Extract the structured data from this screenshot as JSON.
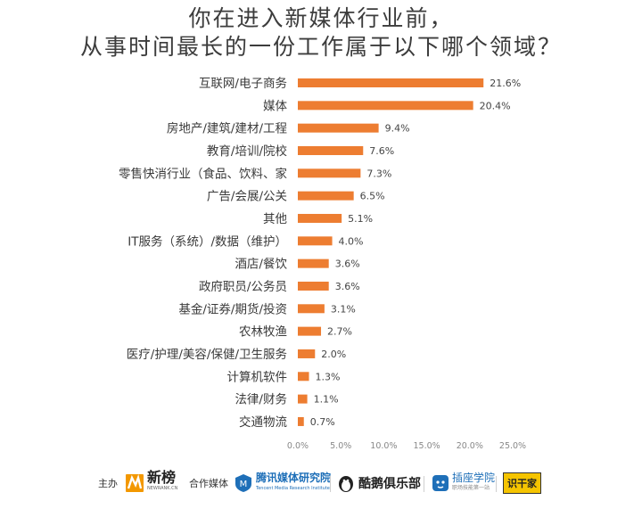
{
  "title_line1": "你在进入新媒体行业前，",
  "title_line2": "从事时间最长的一份工作属于以下哪个领域？",
  "chart_data": {
    "type": "bar",
    "orientation": "horizontal",
    "categories": [
      "互联网/电子商务",
      "媒体",
      "房地产/建筑/建材/工程",
      "教育/培训/院校",
      "零售快消行业（食品、饮料、家",
      "广告/会展/公关",
      "其他",
      "IT服务（系统）/数据（维护）",
      "酒店/餐饮",
      "政府职员/公务员",
      "基金/证券/期货/投资",
      "农林牧渔",
      "医疗/护理/美容/保健/卫生服务",
      "计算机软件",
      "法律/财务",
      "交通物流"
    ],
    "values": [
      21.6,
      20.4,
      9.4,
      7.6,
      7.3,
      6.5,
      5.1,
      4.0,
      3.6,
      3.6,
      3.1,
      2.7,
      2.0,
      1.3,
      1.1,
      0.7
    ],
    "value_labels": [
      "21.6%",
      "20.4%",
      "9.4%",
      "7.6%",
      "7.3%",
      "6.5%",
      "5.1%",
      "4.0%",
      "3.6%",
      "3.6%",
      "3.1%",
      "2.7%",
      "2.0%",
      "1.3%",
      "1.1%",
      "0.7%"
    ],
    "xlim": [
      0,
      25
    ],
    "x_ticks": [
      0,
      5,
      10,
      15,
      20,
      25
    ],
    "x_tick_labels": [
      "0.0%",
      "5.0%",
      "10.0%",
      "15.0%",
      "20.0%",
      "25.0%"
    ],
    "bar_color": "#ED7D31",
    "grid": false,
    "legend": "none"
  },
  "footer": {
    "host_label": "主办",
    "host_logo_text": "新榜",
    "host_logo_sub": "NEWRANK.CN",
    "partner_label": "合作媒体",
    "partners": [
      {
        "name": "腾讯媒体研究院",
        "sub": "Tencent Media Research Institute"
      },
      {
        "name": "酷鹅俱乐部",
        "sub": ""
      },
      {
        "name": "插座学院",
        "sub": "职场技能第一站"
      },
      {
        "name": "识干家",
        "sub": ""
      }
    ]
  },
  "colors": {
    "bar": "#ED7D31",
    "title": "#3c3c3c",
    "tencent_blue": "#1E6FB8",
    "newrank_orange": "#F39800",
    "badge_yellow": "#F5C400"
  }
}
